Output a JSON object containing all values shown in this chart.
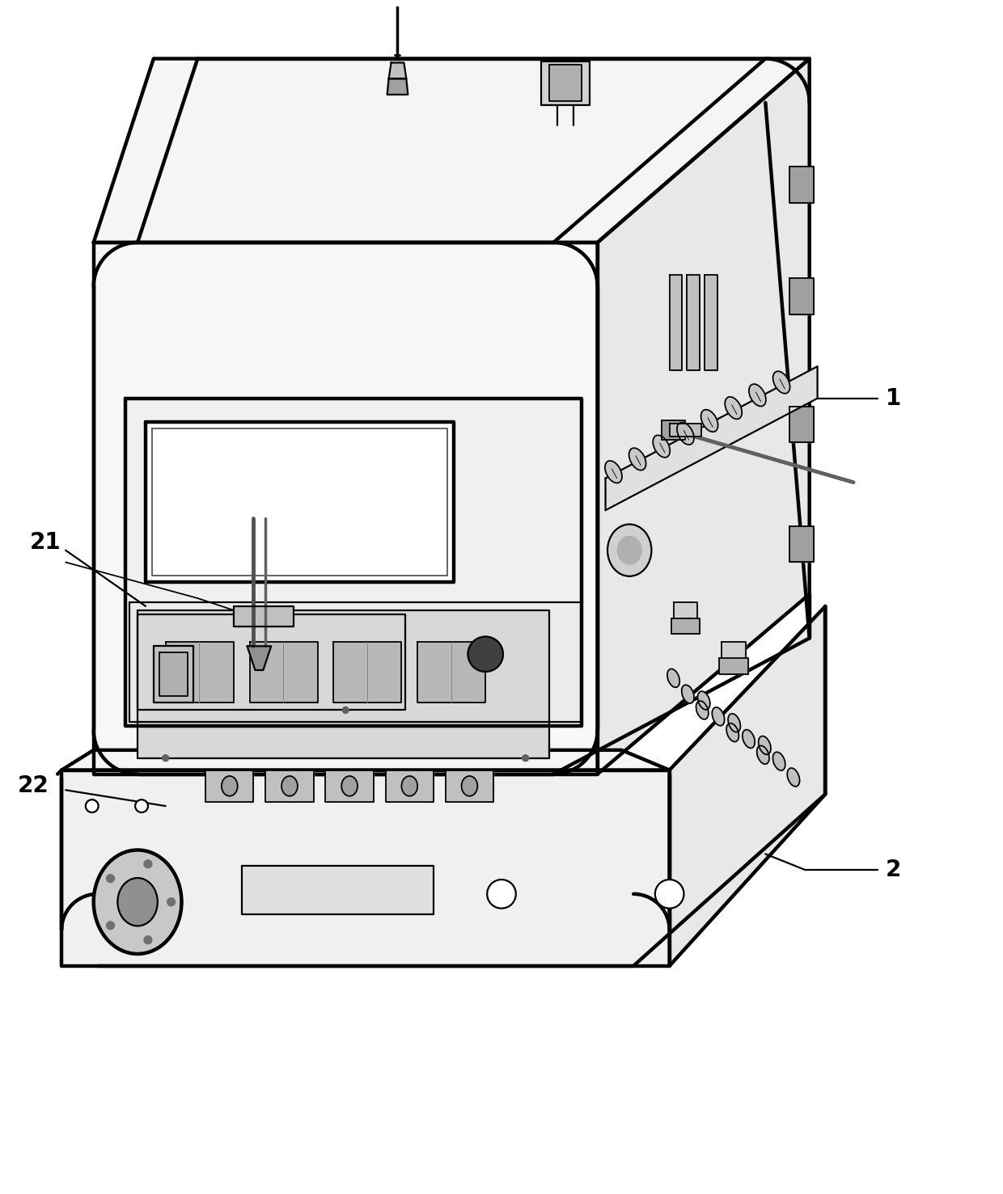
{
  "background_color": "#ffffff",
  "line_color": "#000000",
  "figure_width": 12.4,
  "figure_height": 14.77,
  "label_fontsize": 20,
  "label_fontweight": "bold",
  "line_width": 1.6,
  "light_gray": "#e8e8e8",
  "mid_gray": "#c8c8c8",
  "dark_gray": "#a0a0a0",
  "very_light": "#f5f5f5"
}
